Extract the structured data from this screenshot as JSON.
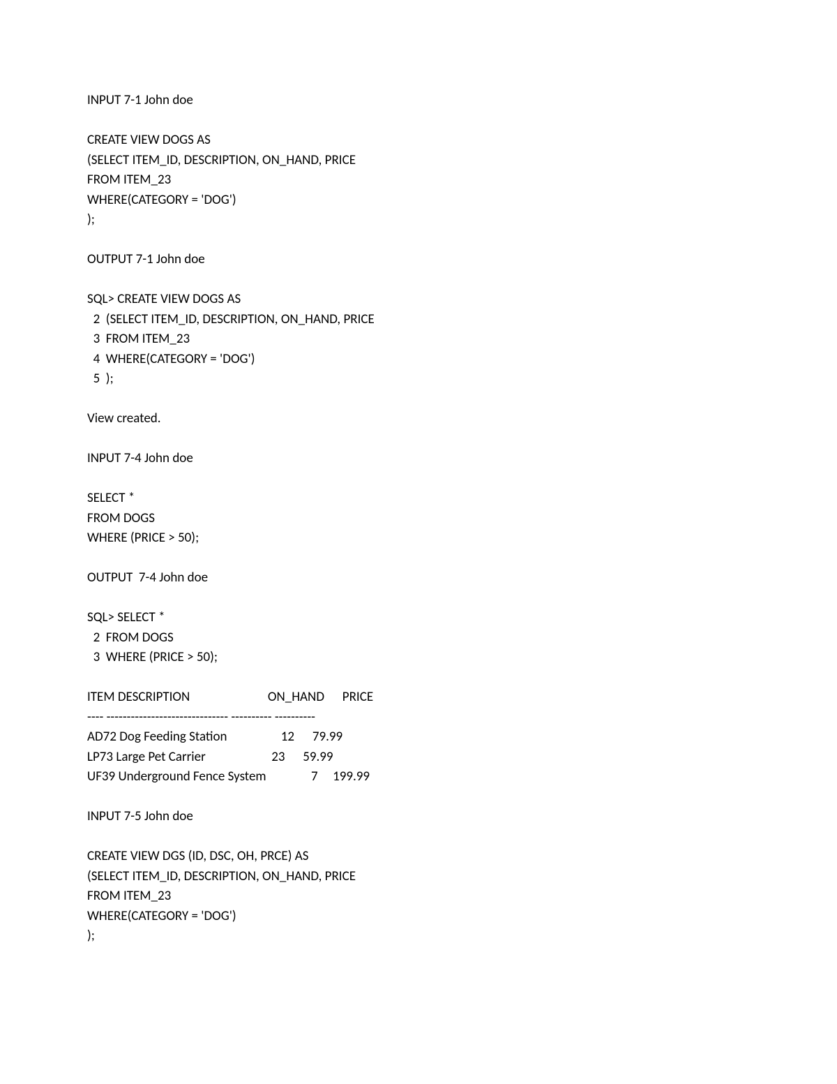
{
  "lines": [
    "INPUT 7-1 John doe",
    "",
    "CREATE VIEW DOGS AS",
    "(SELECT ITEM_ID, DESCRIPTION, ON_HAND, PRICE",
    "FROM ITEM_23",
    "WHERE(CATEGORY = 'DOG')",
    ");",
    "",
    "OUTPUT 7-1 John doe",
    "",
    "SQL> CREATE VIEW DOGS AS",
    "  2  (SELECT ITEM_ID, DESCRIPTION, ON_HAND, PRICE",
    "  3  FROM ITEM_23",
    "  4  WHERE(CATEGORY = 'DOG')",
    "  5  );",
    "",
    "View created.",
    "",
    "INPUT 7-4 John doe",
    "",
    "SELECT *",
    "FROM DOGS",
    "WHERE (PRICE > 50);",
    "",
    "OUTPUT  7-4 John doe",
    "",
    "SQL> SELECT *",
    "  2  FROM DOGS",
    "  3  WHERE (PRICE > 50);",
    "",
    "ITEM DESCRIPTION                          ON_HAND      PRICE",
    "---- ------------------------------ ---------- ----------",
    "AD72 Dog Feeding Station                  12      79.99",
    "LP73 Large Pet Carrier                      23      59.99",
    "UF39 Underground Fence System               7     199.99",
    "",
    "INPUT 7-5 John doe",
    "",
    "CREATE VIEW DGS (ID, DSC, OH, PRCE) AS",
    "(SELECT ITEM_ID, DESCRIPTION, ON_HAND, PRICE",
    "FROM ITEM_23",
    "WHERE(CATEGORY = 'DOG')",
    ");"
  ]
}
